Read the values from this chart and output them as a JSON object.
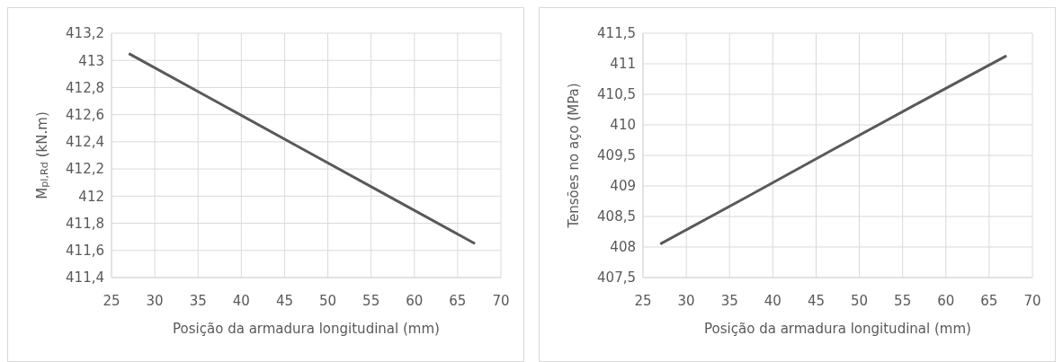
{
  "chart_data": [
    {
      "type": "line",
      "xlabel": "Posição da armadura longitudinal (mm)",
      "ylabel": "M$_{pl,Rd}$ (kN.m)",
      "x": [
        27,
        37,
        47,
        57,
        67
      ],
      "series": [
        {
          "color": "#595959",
          "values": [
            413.05,
            412.7,
            412.35,
            412.0,
            411.65
          ]
        }
      ],
      "xlim": [
        25,
        70
      ],
      "xticks": [
        25,
        30,
        35,
        40,
        45,
        50,
        55,
        60,
        65,
        70
      ],
      "ylim": [
        411.4,
        413.2
      ],
      "yticks": [
        {
          "value": 411.4,
          "label": "411,4"
        },
        {
          "value": 411.6,
          "label": "411,6"
        },
        {
          "value": 411.8,
          "label": "411,8"
        },
        {
          "value": 412,
          "label": "412"
        },
        {
          "value": 412.2,
          "label": "412,2"
        },
        {
          "value": 412.4,
          "label": "412,4"
        },
        {
          "value": 412.6,
          "label": "412,6"
        },
        {
          "value": 412.8,
          "label": "412,8"
        },
        {
          "value": 413,
          "label": "413"
        },
        {
          "value": 413.2,
          "label": "413,2"
        }
      ],
      "grid": true,
      "legend": false,
      "marker": "none"
    },
    {
      "type": "line",
      "xlabel": "Posição da armadura longitudinal (mm)",
      "ylabel": "Tensões no aço (MPa)",
      "x": [
        27,
        37,
        47,
        57,
        67
      ],
      "series": [
        {
          "color": "#595959",
          "values": [
            408.05,
            408.82,
            409.6,
            410.37,
            411.13
          ]
        }
      ],
      "xlim": [
        25,
        70
      ],
      "xticks": [
        25,
        30,
        35,
        40,
        45,
        50,
        55,
        60,
        65,
        70
      ],
      "ylim": [
        407.5,
        411.5
      ],
      "yticks": [
        {
          "value": 407.5,
          "label": "407,5"
        },
        {
          "value": 408,
          "label": "408"
        },
        {
          "value": 408.5,
          "label": "408,5"
        },
        {
          "value": 409,
          "label": "409"
        },
        {
          "value": 409.5,
          "label": "409,5"
        },
        {
          "value": 410,
          "label": "410"
        },
        {
          "value": 410.5,
          "label": "410,5"
        },
        {
          "value": 411,
          "label": "411"
        },
        {
          "value": 411.5,
          "label": "411,5"
        }
      ],
      "grid": true,
      "legend": false,
      "marker": "none"
    }
  ]
}
